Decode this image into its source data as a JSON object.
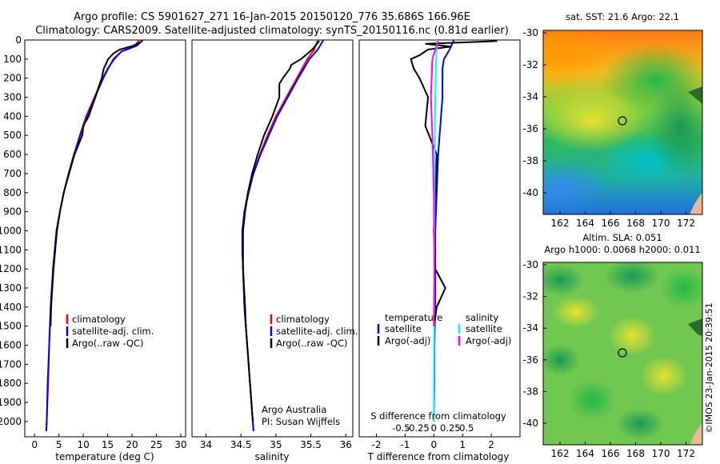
{
  "header": {
    "line1": "Argo profile: CS 5901627_271 16-Jan-2015 20150120_776 35.686S 166.96E",
    "line2": "Climatology: CARS2009. Satellite-adjusted climatology: synTS_20150116.nc (0.81d earlier)"
  },
  "colors": {
    "climatology": "#ff0000",
    "satellite": "#0000ff",
    "argo": "#000000",
    "satellite_salinity": "#00ffff",
    "argo_salinity": "#ff00ff"
  },
  "depth_axis": {
    "ticks": [
      "0",
      "100",
      "200",
      "300",
      "400",
      "500",
      "600",
      "700",
      "800",
      "900",
      "1000",
      "1100",
      "1200",
      "1300",
      "1400",
      "1500",
      "1600",
      "1700",
      "1800",
      "1900",
      "2000"
    ]
  },
  "panels": {
    "temperature": {
      "xlabel": "temperature (deg C)",
      "xticks": [
        "0",
        "5",
        "10",
        "15",
        "20",
        "25",
        "30"
      ],
      "legend": [
        "climatology",
        "satellite-adj. clim.",
        "Argo(..raw -QC)"
      ]
    },
    "salinity": {
      "xlabel": "salinity",
      "xticks": [
        "34",
        "34.5",
        "35",
        "35.5",
        "36"
      ],
      "legend": [
        "climatology",
        "satellite-adj. clim.",
        "Argo(..raw -QC)"
      ],
      "credit1": "Argo Australia",
      "credit2": "PI: Susan Wijffels"
    },
    "difference": {
      "xlabel": "T difference from climatology",
      "top_label": "S difference from climatology",
      "xticks": [
        "-2",
        "-1",
        "0",
        "1",
        "2"
      ],
      "sticks": [
        "-0.5",
        "-0.25",
        "0",
        "0.25",
        "0.5"
      ],
      "legend_t_title": "temperature",
      "legend_s_title": "salinity",
      "legend_t": [
        "satellite",
        "Argo(-adj)"
      ],
      "legend_s": [
        "satellite",
        "Argo(-adj)"
      ]
    }
  },
  "maps": {
    "top_title": "sat. SST: 21.6  Argo: 22.1",
    "bottom_title1": "Altim. SLA: 0.051",
    "bottom_title2": "Argo h1000: 0.0068  h2000: 0.011",
    "yticks": [
      "-30",
      "-32",
      "-34",
      "-36",
      "-38",
      "-40"
    ],
    "xticks": [
      "162",
      "164",
      "166",
      "168",
      "170",
      "172"
    ],
    "credit": "©IMOS 23-Jan-2015 20:39:51"
  },
  "chart_data": [
    {
      "type": "line",
      "xlabel": "temperature (deg C)",
      "ylabel": "",
      "xlim": [
        -2,
        31
      ],
      "ylim": [
        2080,
        0
      ],
      "y_inverted": true,
      "series": [
        {
          "name": "climatology",
          "depth": [
            0,
            30,
            60,
            100,
            150,
            200,
            300,
            400,
            500,
            600,
            700,
            800,
            900,
            1000,
            1200,
            1400,
            1600,
            1800,
            2000,
            2050
          ],
          "values": [
            21.5,
            20.6,
            17.8,
            16.4,
            15.0,
            14.0,
            12.3,
            10.6,
            9.3,
            8.1,
            7.0,
            6.0,
            5.2,
            4.5,
            3.8,
            3.3,
            3.0,
            2.8,
            2.5,
            2.4
          ]
        },
        {
          "name": "satellite-adj. clim.",
          "depth": [
            0,
            30,
            60,
            100,
            150,
            200,
            300,
            400,
            500,
            600,
            700,
            800,
            900,
            1000,
            1200,
            1400,
            1600,
            1800,
            2000,
            2050
          ],
          "values": [
            22.2,
            21.0,
            17.9,
            16.2,
            15.1,
            14.1,
            12.4,
            10.8,
            9.4,
            8.1,
            7.0,
            6.0,
            5.2,
            4.5,
            3.8,
            3.3,
            3.0,
            2.7,
            2.5,
            2.4
          ]
        },
        {
          "name": "Argo(..raw -QC)",
          "depth": [
            5,
            15,
            30,
            50,
            70,
            100,
            150,
            200,
            250,
            300,
            400,
            450,
            500,
            600,
            700,
            800,
            900,
            1000,
            1200,
            1400,
            1500
          ],
          "values": [
            22.1,
            21.5,
            20.2,
            17.5,
            16.2,
            15.1,
            14.2,
            13.8,
            13.1,
            12.5,
            11.1,
            10.0,
            9.8,
            8.2,
            7.1,
            6.0,
            5.2,
            4.6,
            3.9,
            3.4,
            3.3
          ]
        }
      ]
    },
    {
      "type": "line",
      "xlabel": "salinity",
      "ylabel": "",
      "xlim": [
        33.8,
        36.1
      ],
      "ylim": [
        2080,
        0
      ],
      "y_inverted": true,
      "series": [
        {
          "name": "climatology",
          "depth": [
            0,
            50,
            100,
            200,
            300,
            400,
            500,
            600,
            700,
            800,
            900,
            1000,
            1100,
            1200,
            1300,
            1400,
            1500,
            1600,
            1700,
            1800,
            1900,
            2000,
            2050
          ],
          "values": [
            35.6,
            35.55,
            35.45,
            35.3,
            35.15,
            35.0,
            34.88,
            34.77,
            34.68,
            34.6,
            34.55,
            34.52,
            34.52,
            34.53,
            34.54,
            34.55,
            34.57,
            34.59,
            34.61,
            34.63,
            34.65,
            34.67,
            34.68
          ]
        },
        {
          "name": "satellite-adj. clim.",
          "depth": [
            0,
            50,
            100,
            200,
            300,
            400,
            500,
            600,
            700,
            800,
            900,
            1000,
            1100,
            1200,
            1300,
            1400,
            1500,
            1600,
            1700,
            1800,
            1900,
            2000,
            2050
          ],
          "values": [
            35.68,
            35.6,
            35.48,
            35.32,
            35.17,
            35.02,
            34.9,
            34.78,
            34.68,
            34.61,
            34.55,
            34.52,
            34.52,
            34.53,
            34.54,
            34.55,
            34.57,
            34.59,
            34.61,
            34.63,
            34.65,
            34.67,
            34.68
          ]
        },
        {
          "name": "Argo(..raw -QC)",
          "depth": [
            5,
            50,
            100,
            130,
            150,
            200,
            230,
            300,
            400,
            500,
            600,
            700,
            800,
            900,
            1000,
            1200,
            1400,
            1500,
            1700,
            1800,
            2000
          ],
          "values": [
            35.62,
            35.52,
            35.36,
            35.22,
            35.2,
            35.1,
            35.05,
            35.05,
            34.95,
            34.83,
            34.74,
            34.66,
            34.6,
            34.56,
            34.53,
            34.53,
            34.56,
            34.57,
            34.61,
            34.63,
            34.67
          ]
        }
      ]
    },
    {
      "type": "line",
      "xlabel": "T difference from climatology",
      "ylabel": "",
      "xlim": [
        -2.6,
        3.0
      ],
      "ylim": [
        2080,
        0
      ],
      "y_inverted": true,
      "series": [
        {
          "name": "satellite",
          "depth": [
            0,
            50,
            100,
            150,
            200,
            300,
            400,
            500,
            600,
            800,
            1000,
            1200,
            1400,
            1600,
            1800,
            2000
          ],
          "values": [
            0.7,
            0.55,
            0.35,
            0.3,
            0.3,
            0.3,
            0.25,
            0.2,
            0.15,
            0.1,
            0.05,
            0.05,
            0.05,
            0.02,
            0.02,
            0.0
          ]
        },
        {
          "name": "Argo(-adj)",
          "depth": [
            5,
            10,
            20,
            35,
            50,
            80,
            100,
            150,
            200,
            300,
            450,
            600,
            800,
            1000,
            1200,
            1300,
            1400,
            1500
          ],
          "values": [
            2.2,
            1.5,
            -0.3,
            0.6,
            -0.2,
            -0.5,
            -0.8,
            -0.7,
            -0.5,
            -0.2,
            -0.3,
            0.1,
            0.05,
            0.0,
            0.05,
            0.4,
            0.1,
            0.0
          ]
        }
      ]
    }
  ]
}
